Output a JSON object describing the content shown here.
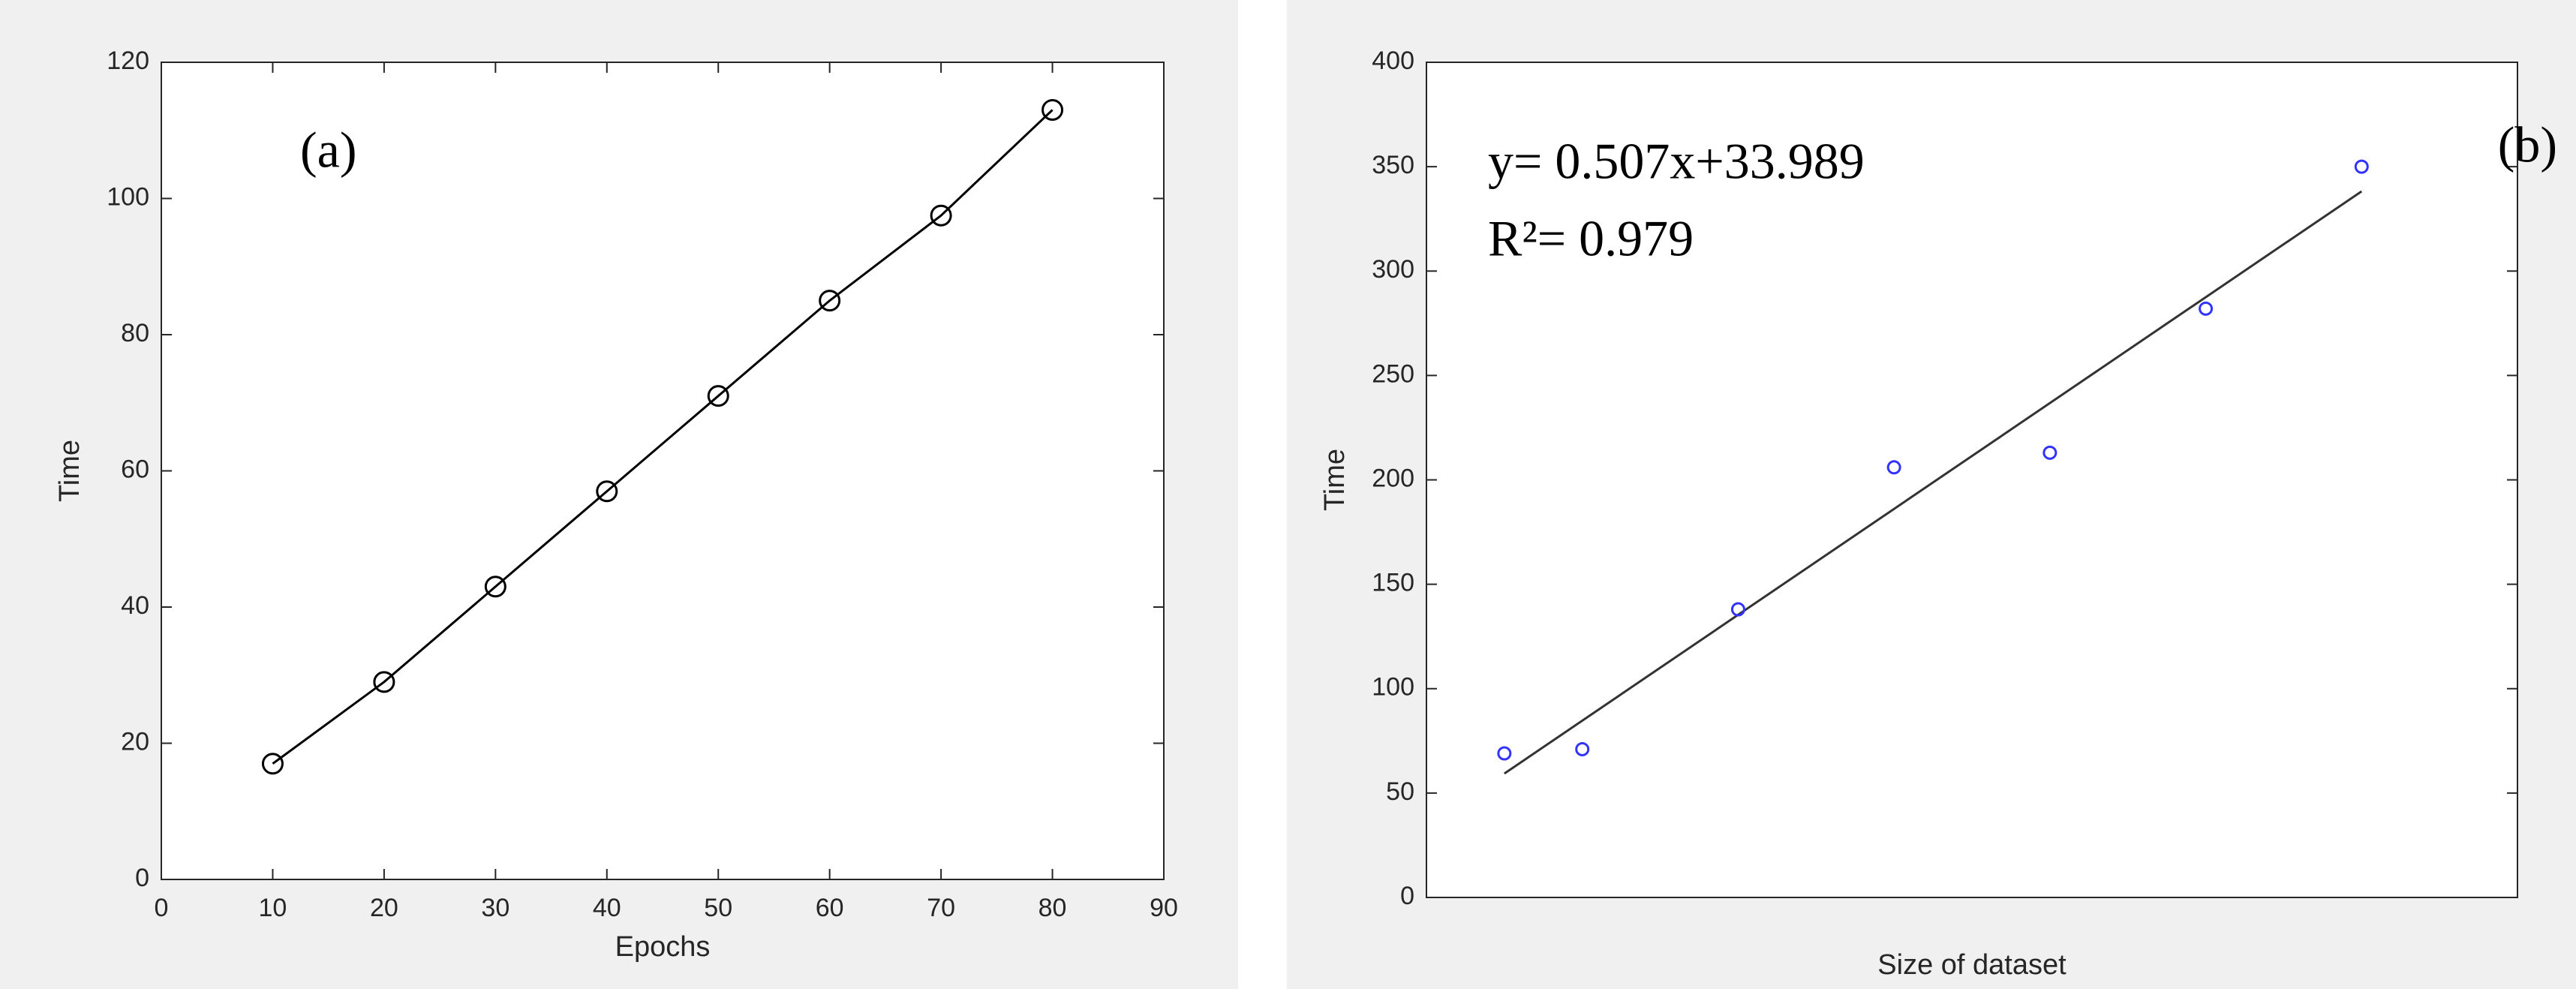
{
  "chart_data": [
    {
      "type": "line",
      "xlabel": "Epochs",
      "ylabel": "Time",
      "annotations": [
        "(a)"
      ],
      "x": [
        10,
        20,
        30,
        40,
        50,
        60,
        70,
        80
      ],
      "series": [
        {
          "color": "#000000",
          "values": [
            17,
            29,
            43,
            57,
            71,
            85,
            97.5,
            113
          ]
        }
      ],
      "xlim": [
        0,
        90
      ],
      "xticks": [
        0,
        10,
        20,
        30,
        40,
        50,
        60,
        70,
        80,
        90
      ],
      "ylim": [
        0,
        120
      ],
      "yticks": [
        0,
        20,
        40,
        60,
        80,
        100,
        120
      ]
    },
    {
      "type": "scatter",
      "xlabel": "Size of dataset",
      "ylabel": "Time",
      "annotations": [
        "y= 0.507x+33.989",
        "R²= 0.979",
        "(b)"
      ],
      "x": [
        50,
        100,
        200,
        300,
        400,
        500,
        600
      ],
      "series": [
        {
          "color": "#3333ff",
          "values": [
            69,
            71,
            138,
            206,
            213,
            282,
            350
          ]
        }
      ],
      "trendline": {
        "slope": 0.507,
        "intercept": 33.989,
        "color": "#333333"
      },
      "xlim": [
        0,
        700
      ],
      "ylim": [
        0,
        400
      ],
      "yticks": [
        0,
        50,
        100,
        150,
        200,
        250,
        300,
        350,
        400
      ]
    }
  ]
}
